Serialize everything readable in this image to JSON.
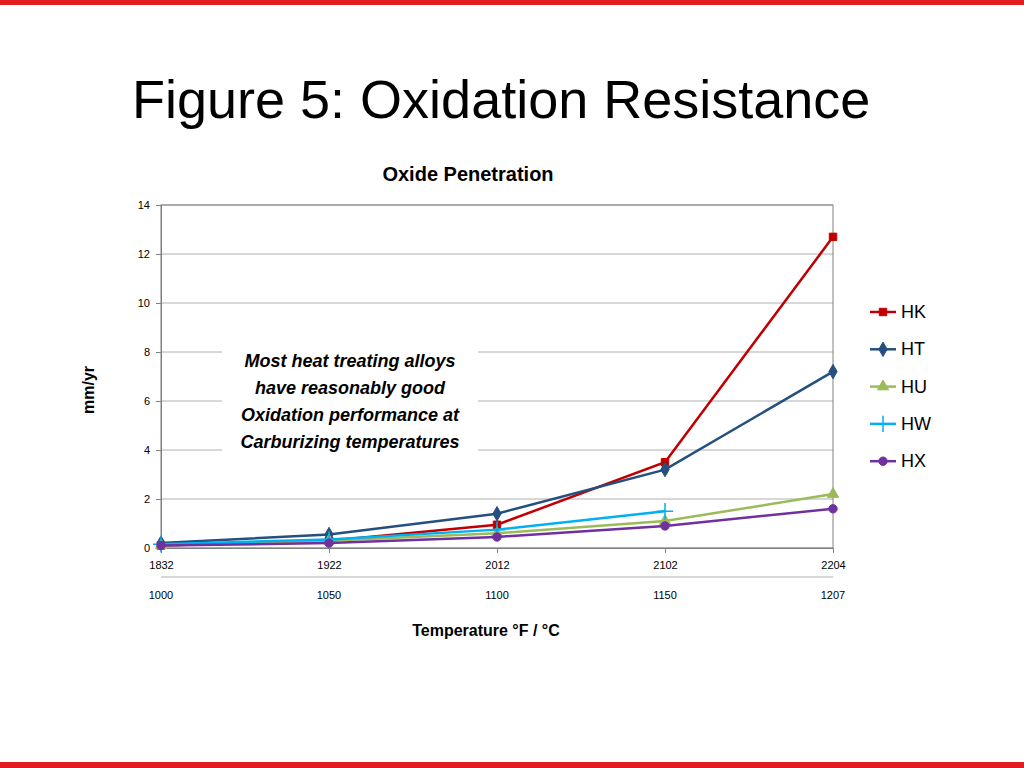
{
  "slide": {
    "title": "Figure 5: Oxidation Resistance"
  },
  "chart_data": {
    "type": "line",
    "title": "Oxide Penetration",
    "x_label": "Temperature °F / °C",
    "y_label": "mm/yr",
    "annotation": "Most heat treating alloys\nhave reasonably good\nOxidation performance at\nCarburizing temperatures",
    "categories": [
      "1832",
      "1922",
      "2012",
      "2102",
      "2204"
    ],
    "categories_c": [
      "1000",
      "1050",
      "1100",
      "1150",
      "1207"
    ],
    "series": [
      {
        "name": "HK",
        "color": "#c00000",
        "marker": "square",
        "values": [
          0.1,
          0.3,
          0.95,
          3.5,
          12.7
        ]
      },
      {
        "name": "HT",
        "color": "#254f7f",
        "marker": "diamond",
        "values": [
          0.2,
          0.55,
          1.4,
          3.2,
          7.2
        ]
      },
      {
        "name": "HU",
        "color": "#9bbb59",
        "marker": "triangle",
        "values": [
          0.1,
          0.3,
          0.6,
          1.1,
          2.2
        ]
      },
      {
        "name": "HW",
        "color": "#00b0f0",
        "marker": "plus",
        "values": [
          0.15,
          0.35,
          0.75,
          1.5,
          null
        ]
      },
      {
        "name": "HX",
        "color": "#7030a0",
        "marker": "circle",
        "values": [
          0.1,
          0.2,
          0.45,
          0.9,
          1.6
        ]
      }
    ],
    "ylim": [
      0,
      14
    ],
    "yticks": [
      0,
      2,
      4,
      6,
      8,
      10,
      12,
      14
    ],
    "grid": true,
    "legend": "right"
  }
}
